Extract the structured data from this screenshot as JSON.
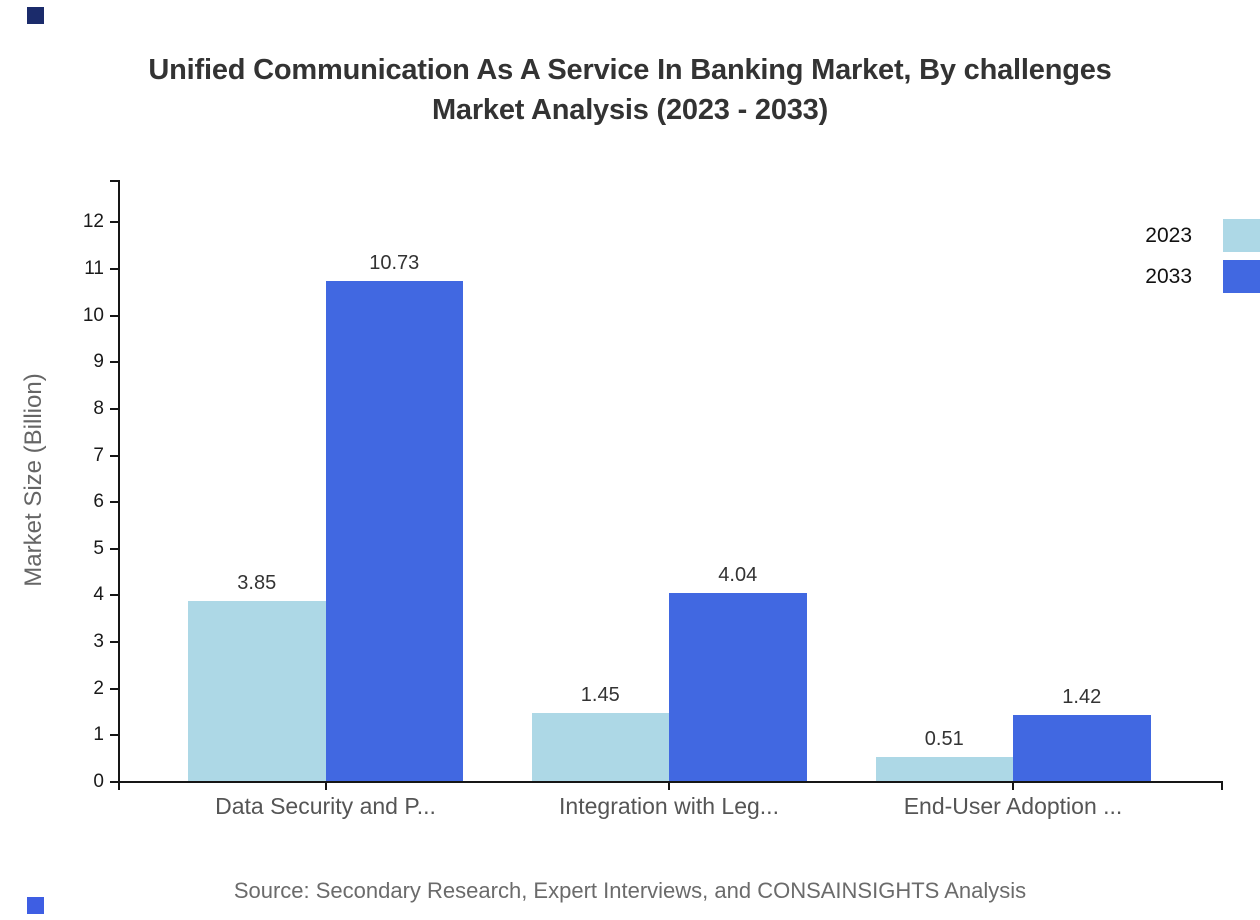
{
  "page": {
    "background": "#ffffff"
  },
  "title": {
    "line1": "Unified Communication As A Service In Banking Market, By challenges",
    "line2": "Market Analysis (2023 - 2033)"
  },
  "source": "Source: Secondary Research, Expert Interviews, and CONSAINSIGHTS Analysis",
  "legend": {
    "position": "top-right",
    "items": [
      {
        "label": "2023",
        "color": "#ADD8E6"
      },
      {
        "label": "2033",
        "color": "#4168E1"
      }
    ]
  },
  "axes": {
    "y_label": "Market Size (Billion)",
    "y_ticks": [
      0,
      1,
      2,
      3,
      4,
      5,
      6,
      7,
      8,
      9,
      10,
      11,
      12
    ],
    "x_categories": [
      "Data Security and P...",
      "Integration with Leg...",
      "End-User Adoption ..."
    ]
  },
  "chart_data": {
    "type": "bar",
    "title": "Unified Communication As A Service In Banking Market, By challenges Market Analysis (2023 - 2033)",
    "categories": [
      "Data Security and P...",
      "Integration with Leg...",
      "End-User Adoption ..."
    ],
    "series": [
      {
        "name": "2023",
        "color": "#ADD8E6",
        "values": [
          3.85,
          1.45,
          0.51
        ]
      },
      {
        "name": "2033",
        "color": "#4168E1",
        "values": [
          10.73,
          4.04,
          1.42
        ]
      }
    ],
    "xlabel": "",
    "ylabel": "Market Size (Billion)",
    "ylim": [
      0,
      12.9
    ],
    "grid": false,
    "legend_position": "top-right",
    "value_labels": true
  },
  "decorations": {
    "top_left_square_color": "#1B2B6B",
    "bottom_left_square_color": "#3E5EE3"
  }
}
